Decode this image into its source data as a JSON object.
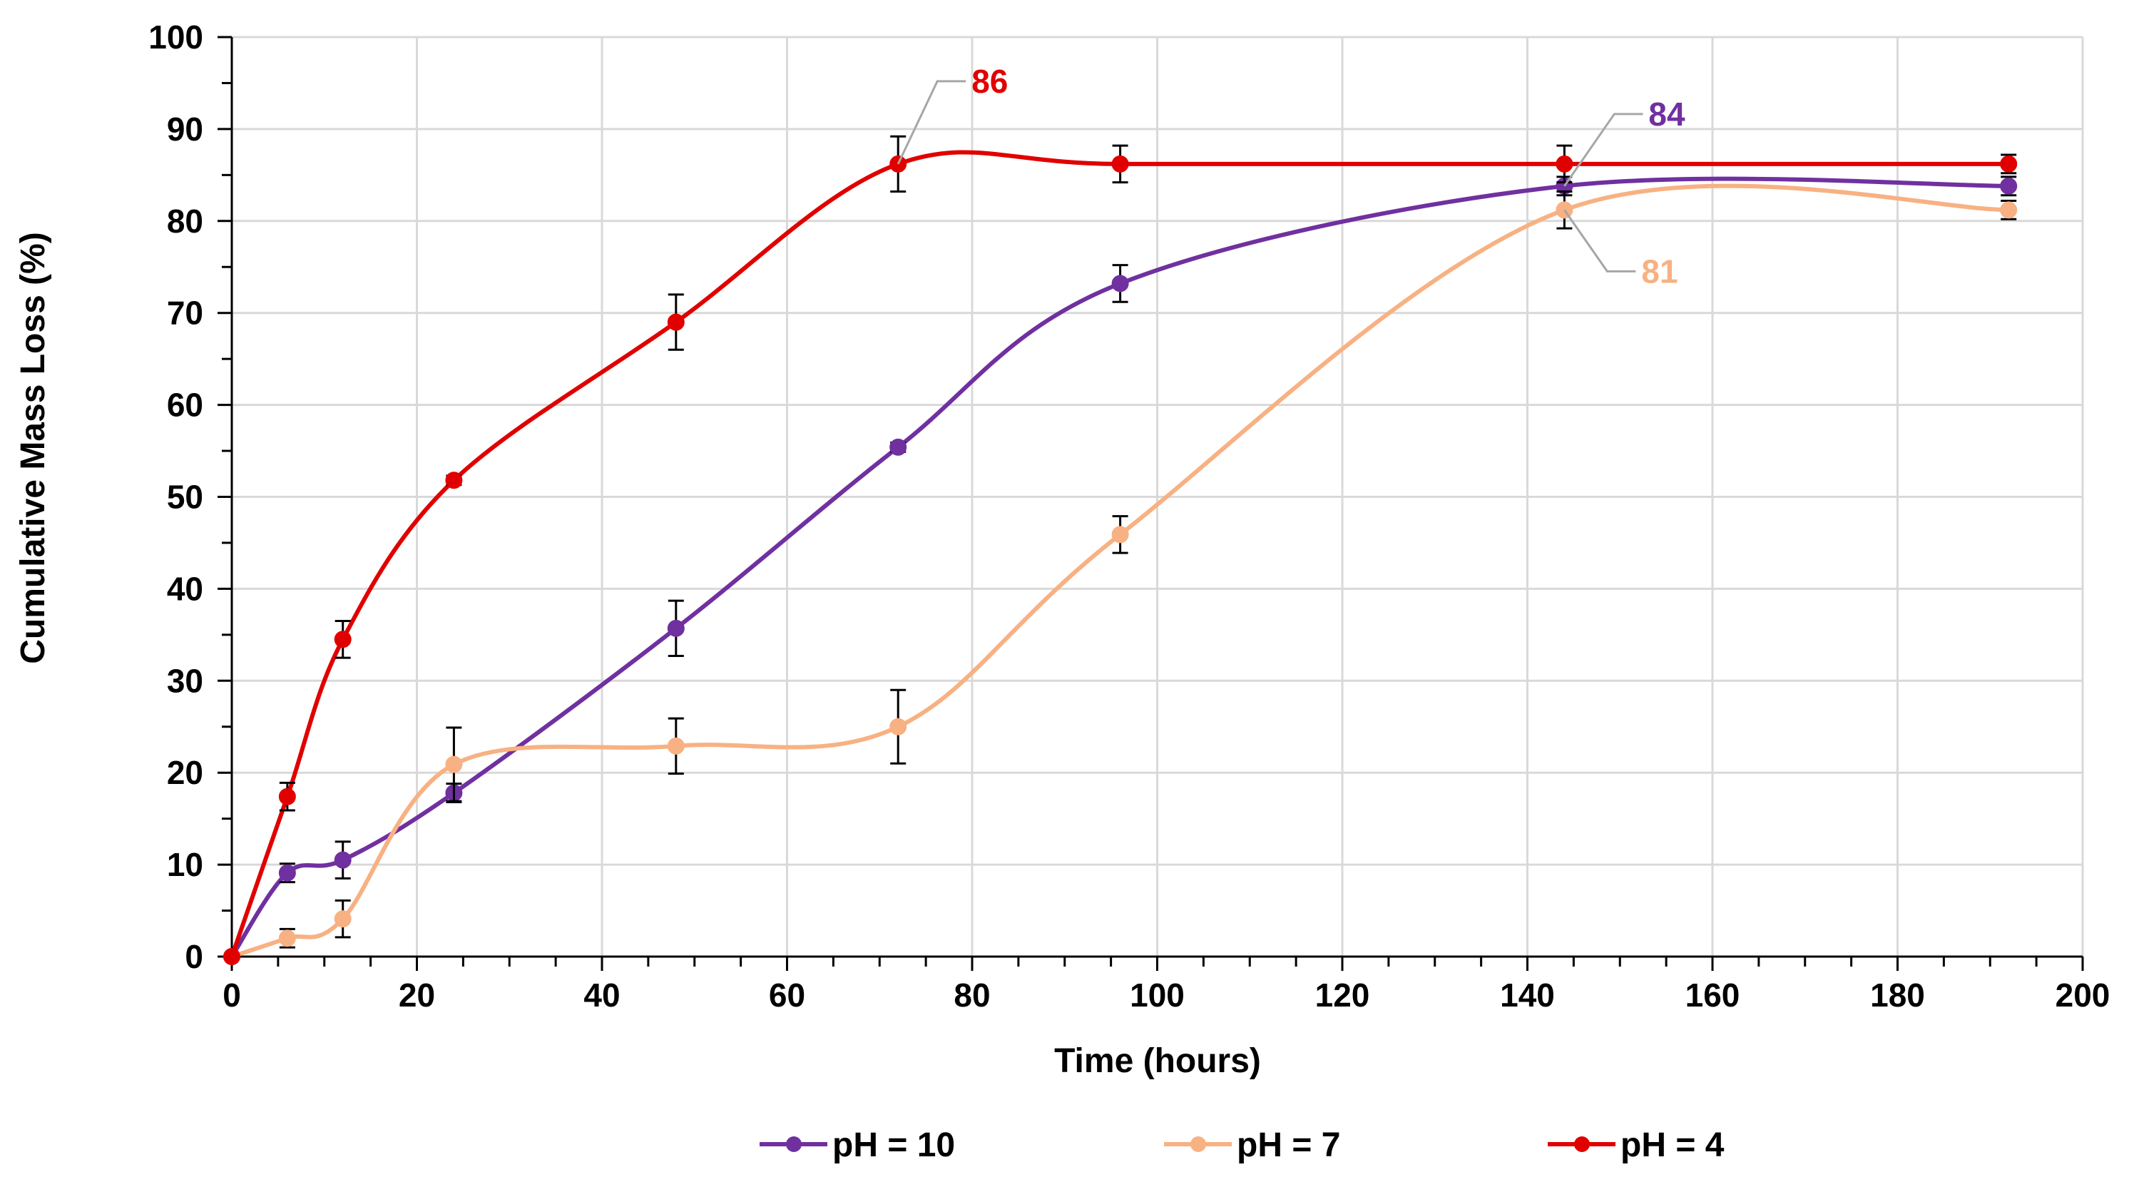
{
  "chart_data": {
    "type": "line",
    "title": "",
    "xlabel": "Time (hours)",
    "ylabel": "Cumulative Mass Loss (%)",
    "xlim": [
      0,
      200
    ],
    "ylim": [
      0,
      100
    ],
    "xticks": [
      0,
      20,
      40,
      60,
      80,
      100,
      120,
      140,
      160,
      180,
      200
    ],
    "yticks": [
      0,
      10,
      20,
      30,
      40,
      50,
      60,
      70,
      80,
      90,
      100
    ],
    "x_minor_step": 5,
    "y_minor_step": 5,
    "grid": true,
    "legend_position": "bottom",
    "series": [
      {
        "name": "pH = 10",
        "color": "#7030A0",
        "x": [
          0,
          6,
          12,
          24,
          48,
          72,
          96,
          144,
          192
        ],
        "values": [
          0,
          9.1,
          10.5,
          17.8,
          35.7,
          55.4,
          73.2,
          83.8,
          83.8
        ],
        "errors": [
          0,
          1.0,
          2.0,
          1.0,
          3.0,
          0.5,
          2.0,
          1.0,
          1.0
        ]
      },
      {
        "name": "pH = 7",
        "color": "#F8B183",
        "x": [
          0,
          6,
          12,
          24,
          48,
          72,
          96,
          144,
          192
        ],
        "values": [
          0,
          2.0,
          4.1,
          20.9,
          22.9,
          25.0,
          45.9,
          81.2,
          81.2
        ],
        "errors": [
          0,
          1.0,
          2.0,
          4.0,
          3.0,
          4.0,
          2.0,
          2.0,
          1.0
        ]
      },
      {
        "name": "pH = 4",
        "color": "#E00000",
        "x": [
          0,
          6,
          12,
          24,
          48,
          72,
          96,
          144,
          192
        ],
        "values": [
          0,
          17.4,
          34.5,
          51.8,
          69.0,
          86.2,
          86.2,
          86.2,
          86.2
        ],
        "errors": [
          0,
          1.5,
          2.0,
          0.5,
          3.0,
          3.0,
          2.0,
          2.0,
          1.0
        ]
      }
    ],
    "annotations": [
      {
        "text": "86",
        "x": 72,
        "y": 86.2,
        "series": "pH = 4",
        "color": "#E00000"
      },
      {
        "text": "84",
        "x": 144,
        "y": 83.8,
        "series": "pH = 10",
        "color": "#7030A0"
      },
      {
        "text": "81",
        "x": 144,
        "y": 81.2,
        "series": "pH = 7",
        "color": "#F8B183"
      }
    ]
  }
}
